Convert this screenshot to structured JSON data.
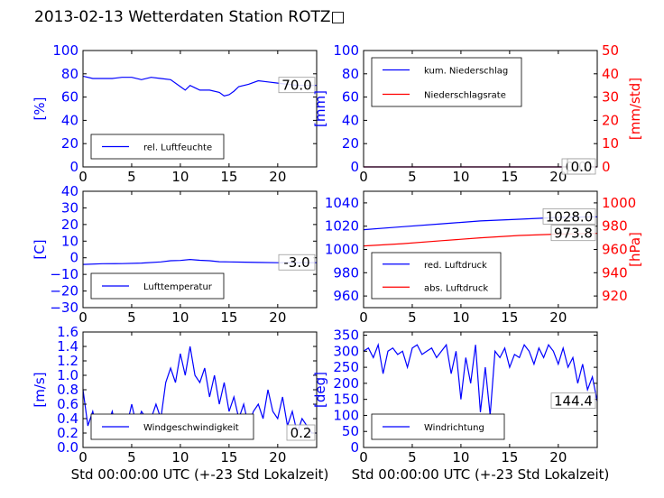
{
  "title": "2013-02-13 Wetterdaten Station ROTZ□",
  "colors": {
    "primary": "#0000ff",
    "secondary": "#ff0000",
    "axis": "#000000"
  },
  "chart_data": [
    {
      "id": "humidity",
      "type": "line",
      "ylabel": "[%]",
      "xlabel": "",
      "xlim": [
        0,
        24
      ],
      "ylim": [
        0,
        100
      ],
      "xticks": [
        0,
        5,
        10,
        15,
        20
      ],
      "yticks": [
        0,
        20,
        40,
        60,
        80,
        100
      ],
      "legend": "bottom-left",
      "series": [
        {
          "name": "rel. Luftfeuchte",
          "color": "#0000ff",
          "x": [
            0,
            1,
            2,
            3,
            4,
            5,
            6,
            7,
            8,
            9,
            10,
            10.5,
            11,
            11.5,
            12,
            13,
            14,
            14.5,
            15,
            15.5,
            16,
            17,
            18,
            19,
            20,
            21,
            22,
            23,
            24
          ],
          "y": [
            78,
            76,
            76,
            76,
            77,
            77,
            75,
            77,
            76,
            75,
            69,
            66,
            70,
            68,
            66,
            66,
            64,
            61,
            62,
            65,
            69,
            71,
            74,
            73,
            72,
            71,
            70,
            70,
            70
          ]
        }
      ],
      "last_value_label": "70.0",
      "last_value": 70.0
    },
    {
      "id": "precip",
      "type": "line",
      "ylabel": "[mm]",
      "ylabel2": "[mm/std]",
      "xlabel": "",
      "xlim": [
        0,
        24
      ],
      "ylim": [
        0,
        100
      ],
      "ylim2": [
        0,
        50
      ],
      "xticks": [
        0,
        5,
        10,
        15,
        20
      ],
      "yticks": [
        0,
        20,
        40,
        60,
        80,
        100
      ],
      "yticks2": [
        0,
        10,
        20,
        30,
        40,
        50
      ],
      "legend": "top-left",
      "series": [
        {
          "name": "kum. Niederschlag",
          "color": "#0000ff",
          "x": [
            0,
            24
          ],
          "y": [
            0,
            0
          ]
        },
        {
          "name": "Niederschlagsrate",
          "color": "#ff0000",
          "x": [
            0,
            24
          ],
          "y": [
            0,
            0
          ]
        }
      ],
      "last_value_label": "0.0",
      "last_value": 0.0,
      "last_value_label2": "0.0",
      "last_value2": 0.0
    },
    {
      "id": "temperature",
      "type": "line",
      "ylabel": "[C]",
      "xlabel": "",
      "xlim": [
        0,
        24
      ],
      "ylim": [
        -30,
        40
      ],
      "xticks": [
        0,
        5,
        10,
        15,
        20
      ],
      "yticks": [
        -30,
        -20,
        -10,
        0,
        10,
        20,
        30,
        40
      ],
      "legend": "bottom-left",
      "series": [
        {
          "name": "Lufttemperatur",
          "color": "#0000ff",
          "x": [
            0,
            2,
            4,
            6,
            8,
            9,
            10,
            11,
            12,
            13,
            14,
            16,
            18,
            20,
            22,
            24
          ],
          "y": [
            -4,
            -3.6,
            -3.5,
            -3.2,
            -2.5,
            -1.8,
            -1.6,
            -1,
            -1.5,
            -1.8,
            -2.4,
            -2.6,
            -2.8,
            -3,
            -3,
            -3
          ]
        }
      ],
      "last_value_label": "-3.0",
      "last_value": -3.0
    },
    {
      "id": "pressure",
      "type": "line",
      "ylabel": "",
      "ylabel2": "[hPa]",
      "xlabel": "",
      "xlim": [
        0,
        24
      ],
      "ylim": [
        950,
        1050
      ],
      "ylim2": [
        910,
        1010
      ],
      "xticks": [
        0,
        5,
        10,
        15,
        20
      ],
      "yticks": [
        960,
        980,
        1000,
        1020,
        1040
      ],
      "yticks2": [
        920,
        940,
        960,
        980,
        1000
      ],
      "legend": "bottom-left",
      "series": [
        {
          "name": "red. Luftdruck",
          "color": "#0000ff",
          "x": [
            0,
            4,
            8,
            12,
            16,
            20,
            24
          ],
          "y": [
            1017,
            1019.5,
            1022,
            1024.5,
            1026,
            1027.5,
            1028
          ]
        },
        {
          "name": "abs. Luftdruck",
          "color": "#ff0000",
          "axis": "right",
          "x": [
            0,
            4,
            8,
            12,
            16,
            20,
            24
          ],
          "y": [
            963,
            965,
            967.5,
            970,
            972,
            973.2,
            973.8
          ]
        }
      ],
      "last_value_label": "1028.0",
      "last_value": 1028.0,
      "last_value_label2": "973.8",
      "last_value2": 973.8
    },
    {
      "id": "wind_speed",
      "type": "line",
      "ylabel": "[m/s]",
      "xlabel": "Std 00:00:00 UTC (+-23 Std Lokalzeit)",
      "xlim": [
        0,
        24
      ],
      "ylim": [
        0,
        1.6
      ],
      "xticks": [
        0,
        5,
        10,
        15,
        20
      ],
      "yticks": [
        0,
        0.2,
        0.4,
        0.6,
        0.8,
        1.0,
        1.2,
        1.4,
        1.6
      ],
      "ytick_labels": [
        "0.0",
        "0.2",
        "0.4",
        "0.6",
        "0.8",
        "1.0",
        "1.2",
        "1.4",
        "1.6"
      ],
      "legend": "bottom-left",
      "series": [
        {
          "name": "Windgeschwindigkeit",
          "color": "#0000ff",
          "x": [
            0,
            0.5,
            1,
            1.5,
            2,
            2.5,
            3,
            3.5,
            4,
            4.5,
            5,
            5.5,
            6,
            6.5,
            7,
            7.5,
            8,
            8.5,
            9,
            9.5,
            10,
            10.5,
            11,
            11.5,
            12,
            12.5,
            13,
            13.5,
            14,
            14.5,
            15,
            15.5,
            16,
            16.5,
            17,
            17.5,
            18,
            18.5,
            19,
            19.5,
            20,
            20.5,
            21,
            21.5,
            22,
            22.5,
            23,
            23.5,
            24
          ],
          "y": [
            0.8,
            0.3,
            0.5,
            0.2,
            0.4,
            0.3,
            0.5,
            0.2,
            0.4,
            0.3,
            0.6,
            0.3,
            0.5,
            0.4,
            0.4,
            0.6,
            0.4,
            0.9,
            1.1,
            0.9,
            1.3,
            1.0,
            1.4,
            1.0,
            0.9,
            1.1,
            0.7,
            1.0,
            0.6,
            0.9,
            0.5,
            0.7,
            0.4,
            0.6,
            0.3,
            0.5,
            0.6,
            0.4,
            0.8,
            0.5,
            0.4,
            0.7,
            0.3,
            0.5,
            0.2,
            0.4,
            0.3,
            0.2,
            0.2
          ]
        }
      ],
      "last_value_label": "0.2",
      "last_value": 0.2
    },
    {
      "id": "wind_dir",
      "type": "line",
      "ylabel": "[deg]",
      "xlabel": "Std 00:00:00 UTC (+-23 Std Lokalzeit)",
      "xlim": [
        0,
        24
      ],
      "ylim": [
        0,
        360
      ],
      "xticks": [
        0,
        5,
        10,
        15,
        20
      ],
      "yticks": [
        0,
        50,
        100,
        150,
        200,
        250,
        300,
        350
      ],
      "legend": "bottom-left",
      "series": [
        {
          "name": "Windrichtung",
          "color": "#0000ff",
          "x": [
            0,
            0.5,
            1,
            1.5,
            2,
            2.5,
            3,
            3.5,
            4,
            4.5,
            5,
            5.5,
            6,
            6.5,
            7,
            7.5,
            8,
            8.5,
            9,
            9.5,
            10,
            10.5,
            11,
            11.5,
            12,
            12.5,
            13,
            13.5,
            14,
            14.5,
            15,
            15.5,
            16,
            16.5,
            17,
            17.5,
            18,
            18.5,
            19,
            19.5,
            20,
            20.5,
            21,
            21.5,
            22,
            22.5,
            23,
            23.5,
            24
          ],
          "y": [
            300,
            310,
            280,
            320,
            230,
            300,
            310,
            290,
            300,
            250,
            310,
            320,
            290,
            300,
            310,
            280,
            300,
            320,
            230,
            300,
            150,
            280,
            200,
            320,
            110,
            250,
            100,
            300,
            280,
            310,
            250,
            290,
            280,
            320,
            300,
            260,
            310,
            280,
            320,
            300,
            260,
            310,
            250,
            280,
            200,
            260,
            180,
            220,
            144.4
          ]
        }
      ],
      "last_value_label": "144.4",
      "last_value": 144.4
    }
  ]
}
